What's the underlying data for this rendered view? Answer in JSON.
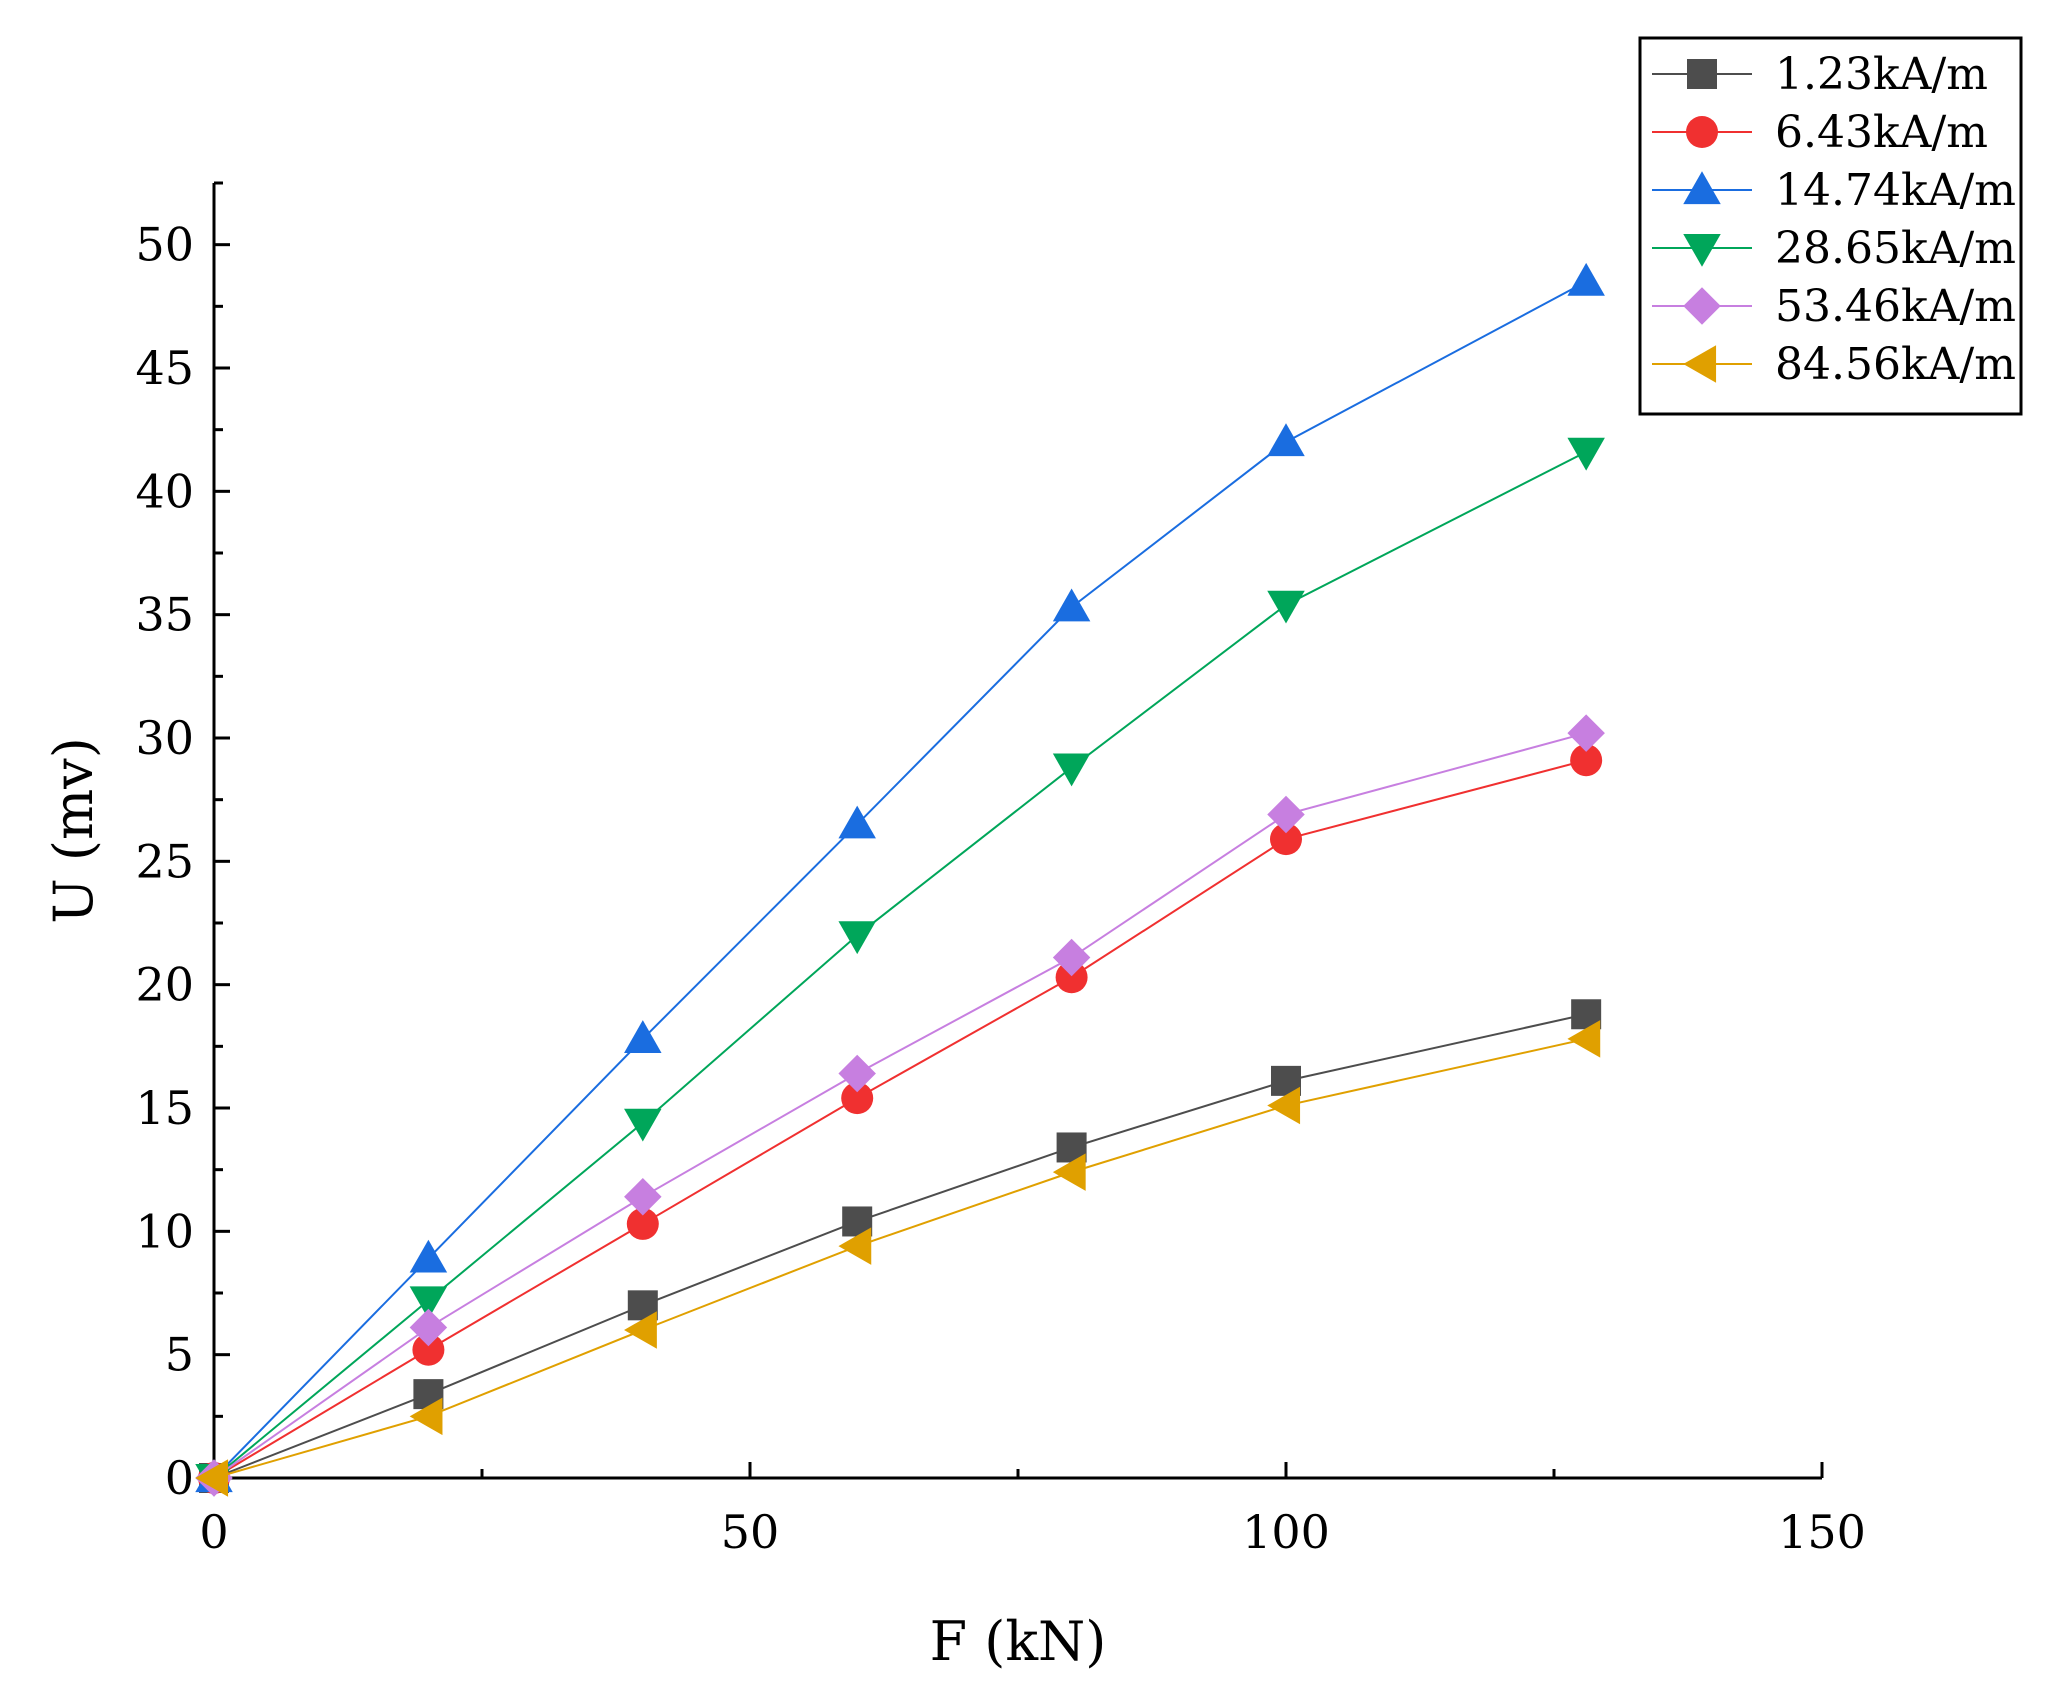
{
  "chart_data": {
    "type": "line",
    "title": "",
    "xlabel": "F (kN)",
    "ylabel": "U (mv)",
    "xlim": [
      0,
      150
    ],
    "ylim": [
      0,
      52.5
    ],
    "xticks": [
      0,
      50,
      100,
      150
    ],
    "yticks": [
      0,
      5,
      10,
      15,
      20,
      25,
      30,
      35,
      40,
      45,
      50
    ],
    "grid": false,
    "legend_position": "top-right",
    "x": [
      0,
      20,
      40,
      60,
      80,
      100,
      128
    ],
    "series": [
      {
        "name": "1.23kA/m",
        "color": "#4d4d4d",
        "marker": "square",
        "values": [
          0,
          3.4,
          7.0,
          10.4,
          13.4,
          16.1,
          18.8
        ]
      },
      {
        "name": "6.43kA/m",
        "color": "#f03030",
        "marker": "circle",
        "values": [
          0,
          5.2,
          10.3,
          15.4,
          20.3,
          25.9,
          29.1
        ]
      },
      {
        "name": "14.74kA/m",
        "color": "#1a6de0",
        "marker": "triangle-up",
        "values": [
          0,
          8.9,
          17.8,
          26.5,
          35.3,
          42.0,
          48.5
        ]
      },
      {
        "name": "28.65kA/m",
        "color": "#00a65a",
        "marker": "triangle-down",
        "values": [
          0,
          7.2,
          14.4,
          22.0,
          28.8,
          35.4,
          41.6
        ]
      },
      {
        "name": "53.46kA/m",
        "color": "#c77fe0",
        "marker": "diamond",
        "values": [
          0,
          6.1,
          11.4,
          16.4,
          21.1,
          26.9,
          30.2
        ]
      },
      {
        "name": "84.56kA/m",
        "color": "#e0a000",
        "marker": "triangle-left",
        "values": [
          0,
          2.5,
          6.0,
          9.4,
          12.4,
          15.1,
          17.8
        ]
      }
    ]
  }
}
